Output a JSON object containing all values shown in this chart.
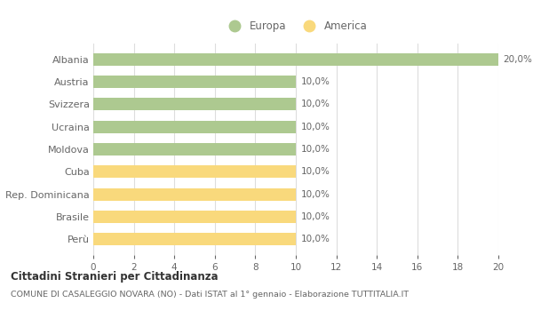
{
  "categories": [
    "Albania",
    "Austria",
    "Svizzera",
    "Ucraina",
    "Moldova",
    "Cuba",
    "Rep. Dominicana",
    "Brasile",
    "Perù"
  ],
  "values": [
    20.0,
    10.0,
    10.0,
    10.0,
    10.0,
    10.0,
    10.0,
    10.0,
    10.0
  ],
  "colors": [
    "#adc990",
    "#adc990",
    "#adc990",
    "#adc990",
    "#adc990",
    "#f9d97c",
    "#f9d97c",
    "#f9d97c",
    "#f9d97c"
  ],
  "bar_labels": [
    "20,0%",
    "10,0%",
    "10,0%",
    "10,0%",
    "10,0%",
    "10,0%",
    "10,0%",
    "10,0%",
    "10,0%"
  ],
  "legend_labels": [
    "Europa",
    "America"
  ],
  "legend_colors": [
    "#adc990",
    "#f9d97c"
  ],
  "xlim": [
    0,
    20
  ],
  "xticks": [
    0,
    2,
    4,
    6,
    8,
    10,
    12,
    14,
    16,
    18,
    20
  ],
  "title": "Cittadini Stranieri per Cittadinanza",
  "subtitle": "COMUNE DI CASALEGGIO NOVARA (NO) - Dati ISTAT al 1° gennaio - Elaborazione TUTTITALIA.IT",
  "background_color": "#ffffff",
  "grid_color": "#dddddd",
  "label_color": "#666666",
  "bar_height": 0.55
}
